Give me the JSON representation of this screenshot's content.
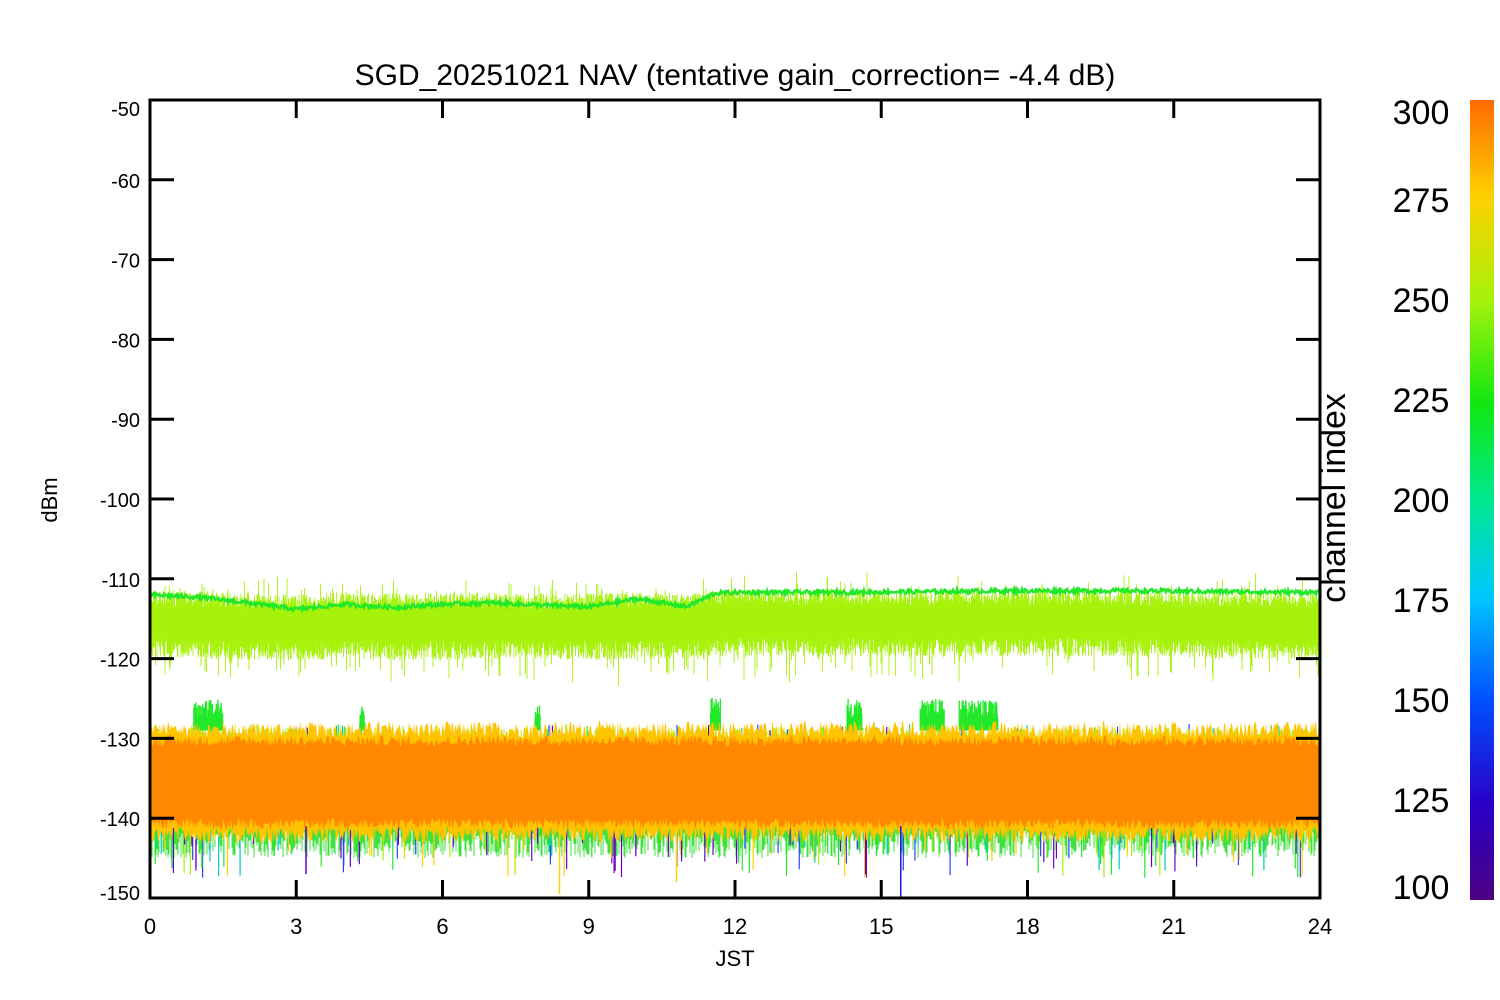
{
  "chart_data": {
    "type": "line",
    "title": "SGD_20251021 NAV (tentative gain_correction= -4.4 dB)",
    "xlabel": "JST",
    "ylabel": "dBm",
    "xlim": [
      0,
      24
    ],
    "ylim": [
      -150,
      -50
    ],
    "x_ticks": [
      "0",
      "3",
      "6",
      "9",
      "12",
      "15",
      "18",
      "21",
      "24"
    ],
    "y_ticks": [
      "-50",
      "-60",
      "-70",
      "-80",
      "-90",
      "-100",
      "-110",
      "-120",
      "-130",
      "-140",
      "-150"
    ],
    "colorbar": {
      "label": "channel index",
      "range": [
        100,
        300
      ],
      "ticks": [
        "300",
        "275",
        "250",
        "225",
        "200",
        "175",
        "150",
        "125",
        "100"
      ],
      "colormap": "rainbow"
    },
    "series": [
      {
        "channel_index": 230,
        "color": "#22e82a",
        "description_level": "narrow band trace",
        "x": [
          0,
          1,
          2,
          3,
          4,
          5,
          6,
          7,
          8,
          9,
          10,
          11,
          11.6,
          12,
          14,
          16,
          18,
          20,
          22,
          24
        ],
        "y": [
          -112,
          -112.3,
          -113,
          -113.8,
          -113.2,
          -113.6,
          -113.2,
          -113,
          -113.3,
          -113.5,
          -112.5,
          -113.5,
          -111.8,
          -111.7,
          -111.7,
          -111.6,
          -111.5,
          -111.5,
          -111.6,
          -111.7
        ]
      },
      {
        "channel_index": 262,
        "color": "#a6f20a",
        "band_center": [
          -115.5,
          -115.8,
          -116,
          -116.2,
          -115.8,
          -116,
          -116,
          -115.8,
          -116,
          -116,
          -115.8,
          -116,
          -115.6,
          -115.4,
          -115.5,
          -115.6,
          -115.5,
          -115.6,
          -115.8,
          -116
        ],
        "band_x": [
          0,
          1,
          2,
          3,
          4,
          5,
          6,
          7,
          8,
          9,
          10,
          11,
          11.6,
          12,
          14,
          16,
          18,
          20,
          22,
          24
        ],
        "band_halfwidth": 3.5
      },
      {
        "channel_index": 290,
        "color": "#ff8800",
        "band_center": -135.5,
        "band_halfwidth": 5.5,
        "x": [
          0,
          24
        ]
      }
    ]
  }
}
